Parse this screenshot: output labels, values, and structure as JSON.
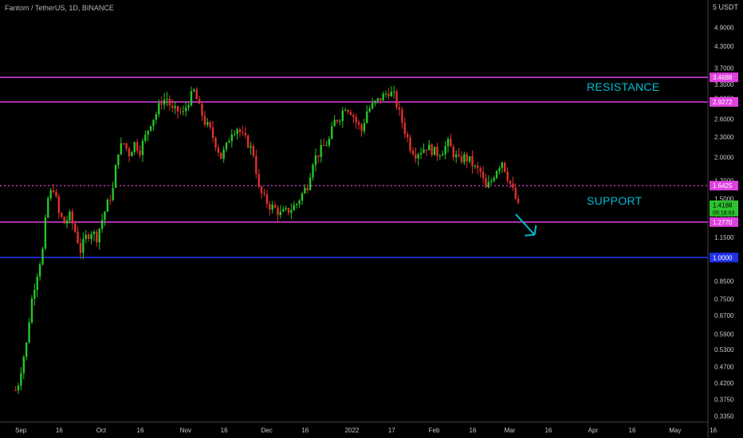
{
  "header": {
    "symbol_label": "Fantom / TetherUS, 1D, BINANCE",
    "unit": "5 USDT"
  },
  "annotations": {
    "resistance": "RESISTANCE",
    "support": "SUPPORT"
  },
  "colors": {
    "background": "#000000",
    "up": "#26c626",
    "down": "#e0302e",
    "level_line": "#e040e0",
    "blue_line": "#2030e8",
    "annotation": "#00bcd4",
    "axis_text": "#c8c8c8",
    "current_price_bg": "#2ec42e"
  },
  "chart_data": {
    "type": "candlestick",
    "scale": "log",
    "ylim": [
      0.33,
      5.6
    ],
    "y_ticks": [
      "4.9000",
      "4.3000",
      "3.7000",
      "3.3000",
      "3.0000",
      "2.6000",
      "2.3000",
      "2.0000",
      "1.7000",
      "1.5000",
      "1.3000",
      "1.1500",
      "1.0000",
      "0.8500",
      "0.7500",
      "0.6700",
      "0.5900",
      "0.5300",
      "0.4700",
      "0.4200",
      "0.3750",
      "0.3350"
    ],
    "x_ticks": [
      "Sep",
      "16",
      "Oct",
      "16",
      "Nov",
      "16",
      "Dec",
      "16",
      "2022",
      "17",
      "Feb",
      "16",
      "Mar",
      "16",
      "Apr",
      "16",
      "May",
      "16"
    ],
    "x_tick_days": [
      0,
      15,
      30,
      45,
      61,
      76,
      91,
      106,
      122,
      138,
      153,
      168,
      181,
      196,
      212,
      227,
      242,
      257
    ],
    "horizontal_levels": [
      {
        "price": "3.4688",
        "style": "solid",
        "color": "#e040e0"
      },
      {
        "price": "2.9272",
        "style": "solid",
        "color": "#e040e0"
      },
      {
        "price": "1.6425",
        "style": "dotted",
        "color": "#e040e0"
      },
      {
        "price": "1.2770",
        "style": "solid",
        "color": "#e040e0"
      },
      {
        "price": "1.0000",
        "style": "solid",
        "color": "#2030e8"
      }
    ],
    "current_price": {
      "value": "1.4188",
      "extra": "05:18:03"
    },
    "projection_arrow": {
      "from_day": 184,
      "from_price": 1.35,
      "to_day": 191,
      "to_price": 1.17
    },
    "key_points": [
      [
        -1,
        0.4
      ],
      [
        0,
        0.42
      ],
      [
        3,
        0.55
      ],
      [
        5,
        0.75
      ],
      [
        7,
        0.9
      ],
      [
        9,
        1.05
      ],
      [
        11,
        1.5
      ],
      [
        13,
        1.62
      ],
      [
        15,
        1.35
      ],
      [
        17,
        1.27
      ],
      [
        19,
        1.33
      ],
      [
        21,
        1.2
      ],
      [
        23,
        1.05
      ],
      [
        25,
        1.15
      ],
      [
        27,
        1.2
      ],
      [
        29,
        1.15
      ],
      [
        31,
        1.3
      ],
      [
        33,
        1.45
      ],
      [
        35,
        1.6
      ],
      [
        37,
        2.1
      ],
      [
        39,
        2.2
      ],
      [
        41,
        2.05
      ],
      [
        43,
        2.2
      ],
      [
        45,
        2.1
      ],
      [
        47,
        2.3
      ],
      [
        49,
        2.55
      ],
      [
        51,
        2.7
      ],
      [
        53,
        2.95
      ],
      [
        55,
        3.0
      ],
      [
        57,
        2.75
      ],
      [
        59,
        2.75
      ],
      [
        61,
        2.7
      ],
      [
        63,
        2.95
      ],
      [
        65,
        3.15
      ],
      [
        67,
        2.8
      ],
      [
        69,
        2.55
      ],
      [
        71,
        2.4
      ],
      [
        73,
        2.2
      ],
      [
        75,
        2.0
      ],
      [
        77,
        2.15
      ],
      [
        79,
        2.4
      ],
      [
        81,
        2.45
      ],
      [
        83,
        2.3
      ],
      [
        85,
        2.2
      ],
      [
        87,
        2.05
      ],
      [
        89,
        1.6
      ],
      [
        91,
        1.5
      ],
      [
        93,
        1.43
      ],
      [
        95,
        1.4
      ],
      [
        97,
        1.35
      ],
      [
        99,
        1.37
      ],
      [
        101,
        1.4
      ],
      [
        103,
        1.45
      ],
      [
        105,
        1.55
      ],
      [
        107,
        1.65
      ],
      [
        109,
        1.95
      ],
      [
        111,
        2.05
      ],
      [
        113,
        2.15
      ],
      [
        115,
        2.25
      ],
      [
        117,
        2.55
      ],
      [
        119,
        2.65
      ],
      [
        121,
        2.85
      ],
      [
        123,
        2.75
      ],
      [
        125,
        2.55
      ],
      [
        127,
        2.4
      ],
      [
        129,
        2.75
      ],
      [
        131,
        2.85
      ],
      [
        133,
        2.95
      ],
      [
        135,
        3.05
      ],
      [
        137,
        3.15
      ],
      [
        139,
        3.05
      ],
      [
        141,
        2.7
      ],
      [
        143,
        2.4
      ],
      [
        145,
        2.15
      ],
      [
        147,
        2.05
      ],
      [
        149,
        2.1
      ],
      [
        151,
        2.15
      ],
      [
        153,
        2.1
      ],
      [
        155,
        2.05
      ],
      [
        157,
        2.1
      ],
      [
        159,
        2.2
      ],
      [
        161,
        2.05
      ],
      [
        163,
        1.95
      ],
      [
        165,
        2.0
      ],
      [
        167,
        1.95
      ],
      [
        169,
        1.85
      ],
      [
        171,
        1.8
      ],
      [
        173,
        1.6
      ],
      [
        175,
        1.7
      ],
      [
        177,
        1.85
      ],
      [
        179,
        1.95
      ],
      [
        181,
        1.75
      ],
      [
        183,
        1.58
      ],
      [
        185,
        1.42
      ]
    ]
  }
}
